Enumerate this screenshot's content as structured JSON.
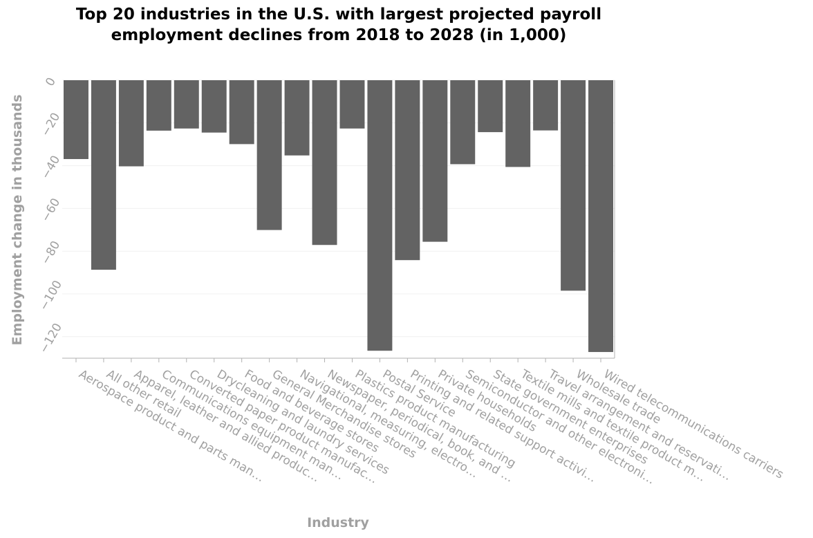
{
  "chart_data": {
    "type": "bar",
    "title": "Top 20 industries in the U.S. with largest projected payroll employment declines from 2018 to 2028 (in 1,000)",
    "xlabel": "Industry",
    "ylabel": "Employment change in thousands",
    "ylim": [
      -130,
      0
    ],
    "yticks": [
      0,
      -20,
      -40,
      -60,
      -80,
      -100,
      -120
    ],
    "ytick_labels": [
      "0",
      "−20",
      "−40",
      "−60",
      "−80",
      "−100",
      "−120"
    ],
    "grid": true,
    "bar_color": "#636363",
    "categories": [
      "Aerospace product and parts man…",
      "All other retail",
      "Apparel, leather and allied produc…",
      "Communications equipment man…",
      "Converted paper product manufac…",
      "Drycleaning and laundry services",
      "Food and beverage stores",
      "General Merchandise stores",
      "Navigational, measuring, electro…",
      "Newspaper, periodical, book, and …",
      "Plastics product manufacturing",
      "Postal Service",
      "Printing and related support activi…",
      "Private households",
      "Semiconductor and other electroni…",
      "State government enterprises",
      "Textile mills and textile product m…",
      "Travel arrangement and reservati…",
      "Wholesale trade",
      "Wired telecommunications carriers"
    ],
    "values": [
      -36.9,
      -88.7,
      -40.3,
      -23.6,
      -22.6,
      -24.5,
      -29.9,
      -70.1,
      -35.2,
      -77.1,
      -22.6,
      -126.6,
      -84.2,
      -75.6,
      -39.3,
      -24.3,
      -40.6,
      -23.5,
      -98.5,
      -127.2
    ]
  }
}
